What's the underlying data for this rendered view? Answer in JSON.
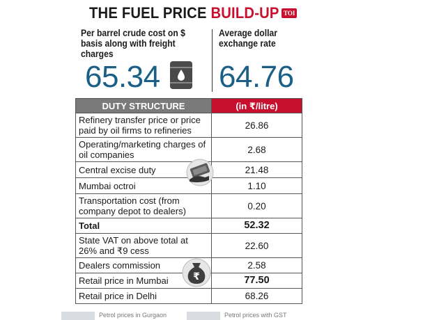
{
  "header": {
    "title_main": "THE FUEL PRICE ",
    "title_accent": "BUILD-UP",
    "logo_text": "TOI"
  },
  "stats": {
    "crude_label": "Per barrel crude cost on $ basis along with freight charges",
    "crude_value": "65.34",
    "exchange_label": "Average dollar exchange rate",
    "exchange_value": "64.76"
  },
  "table": {
    "header_left": "DUTY STRUCTURE",
    "header_right": "(in ₹/litre)",
    "rows": [
      {
        "item": "Refinery transfer price or price paid by oil firms to refineries",
        "value": "26.86"
      },
      {
        "item": "Operating/marketing charges of oil companies",
        "value": "2.68"
      },
      {
        "item": "Central excise duty",
        "value": "21.48"
      },
      {
        "item": "Mumbai octroi",
        "value": "1.10"
      },
      {
        "item": "Transportation cost (from company depot to dealers)",
        "value": "0.20"
      },
      {
        "item": "Total",
        "value": "52.32"
      },
      {
        "item": "State VAT on above total at 26% and ₹9 cess",
        "value": "22.60"
      },
      {
        "item": "Dealers commission",
        "value": "2.58"
      },
      {
        "item": "Retail price in Mumbai",
        "value": "77.50"
      },
      {
        "item": "Retail price in Delhi",
        "value": "68.26"
      }
    ]
  },
  "icons": {
    "barrel": "oil-barrel-icon",
    "money": "money-hand-icon",
    "bag": "rupee-bag-icon"
  },
  "footer": {
    "link_left": "Petrol prices in Gurgaon",
    "link_right": "Petrol prices with GST"
  }
}
